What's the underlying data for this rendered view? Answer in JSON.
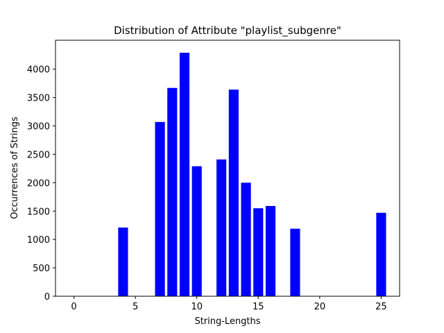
{
  "chart_data": {
    "type": "bar",
    "title": "Distribution of Attribute \"playlist_subgenre\"",
    "xlabel": "String-Lengths",
    "ylabel": "Occurrences of Strings",
    "x": [
      4,
      7,
      8,
      9,
      10,
      12,
      13,
      14,
      15,
      16,
      18,
      25
    ],
    "values": [
      1210,
      3070,
      3670,
      4290,
      2290,
      2410,
      3640,
      2000,
      1550,
      1590,
      1190,
      1470
    ],
    "xlim": [
      -1.5,
      26.5
    ],
    "ylim": [
      0,
      4510
    ],
    "xticks": [
      0,
      5,
      10,
      15,
      20,
      25
    ],
    "yticks": [
      0,
      500,
      1000,
      1500,
      2000,
      2500,
      3000,
      3500,
      4000
    ],
    "bar_color": "#0000ff",
    "grid": false,
    "legend": "none"
  }
}
